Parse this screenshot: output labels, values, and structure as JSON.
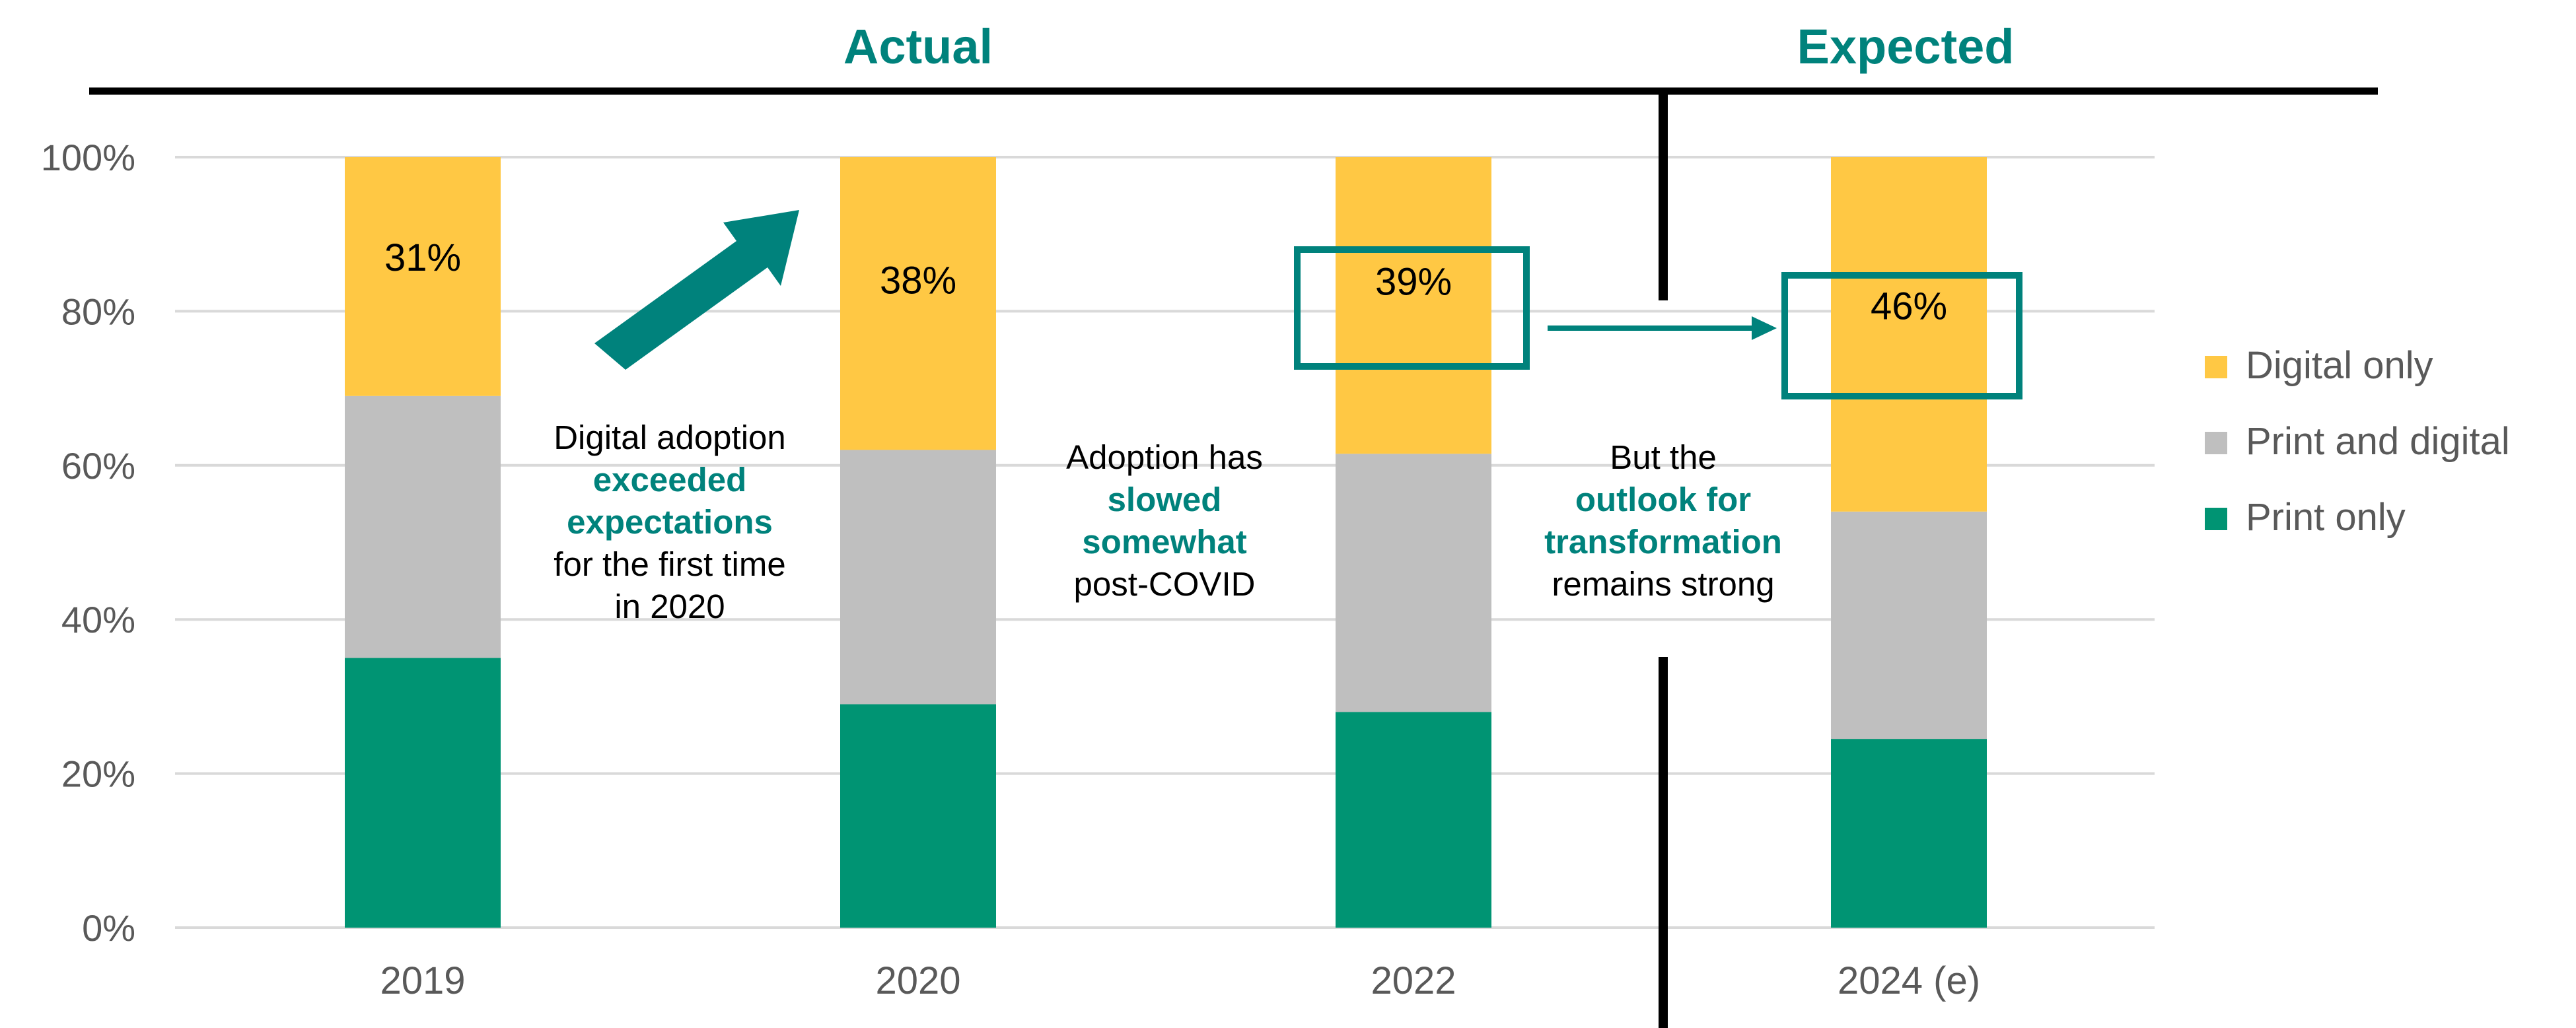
{
  "chart_data": {
    "type": "bar",
    "stacked": true,
    "categories": [
      "2019",
      "2020",
      "2022",
      "2024 (e)"
    ],
    "series": [
      {
        "name": "Print only",
        "color": "#009473",
        "values": [
          35,
          29,
          28,
          24.5
        ]
      },
      {
        "name": "Print and digital",
        "color": "#bfbfbf",
        "values": [
          34,
          33,
          33.5,
          29.5
        ]
      },
      {
        "name": "Digital only",
        "color": "#ffc844",
        "values": [
          31,
          38,
          38.5,
          46
        ]
      }
    ],
    "bar_labels": [
      "31%",
      "38%",
      "39%",
      "46%"
    ],
    "y_ticks": [
      "0%",
      "20%",
      "40%",
      "60%",
      "80%",
      "100%"
    ],
    "ylim": [
      0,
      100
    ],
    "grid": true,
    "legend_position": "right",
    "section_labels": {
      "actual": "Actual",
      "expected": "Expected"
    },
    "annotations": {
      "a1": {
        "line1": "Digital adoption",
        "bold1": "exceeded",
        "bold2": "expectations",
        "line4": "for the first time",
        "line5": "in 2020"
      },
      "a2": {
        "line1": "Adoption has",
        "bold1": "slowed",
        "bold2": "somewhat",
        "line4": "post-COVID"
      },
      "a3": {
        "line1": "But the",
        "bold1": "outlook for",
        "bold2": "transformation",
        "line4": "remains strong"
      }
    },
    "colors": {
      "accent": "#00827c",
      "axis_text": "#595959",
      "grid": "#d9d9d9"
    }
  }
}
